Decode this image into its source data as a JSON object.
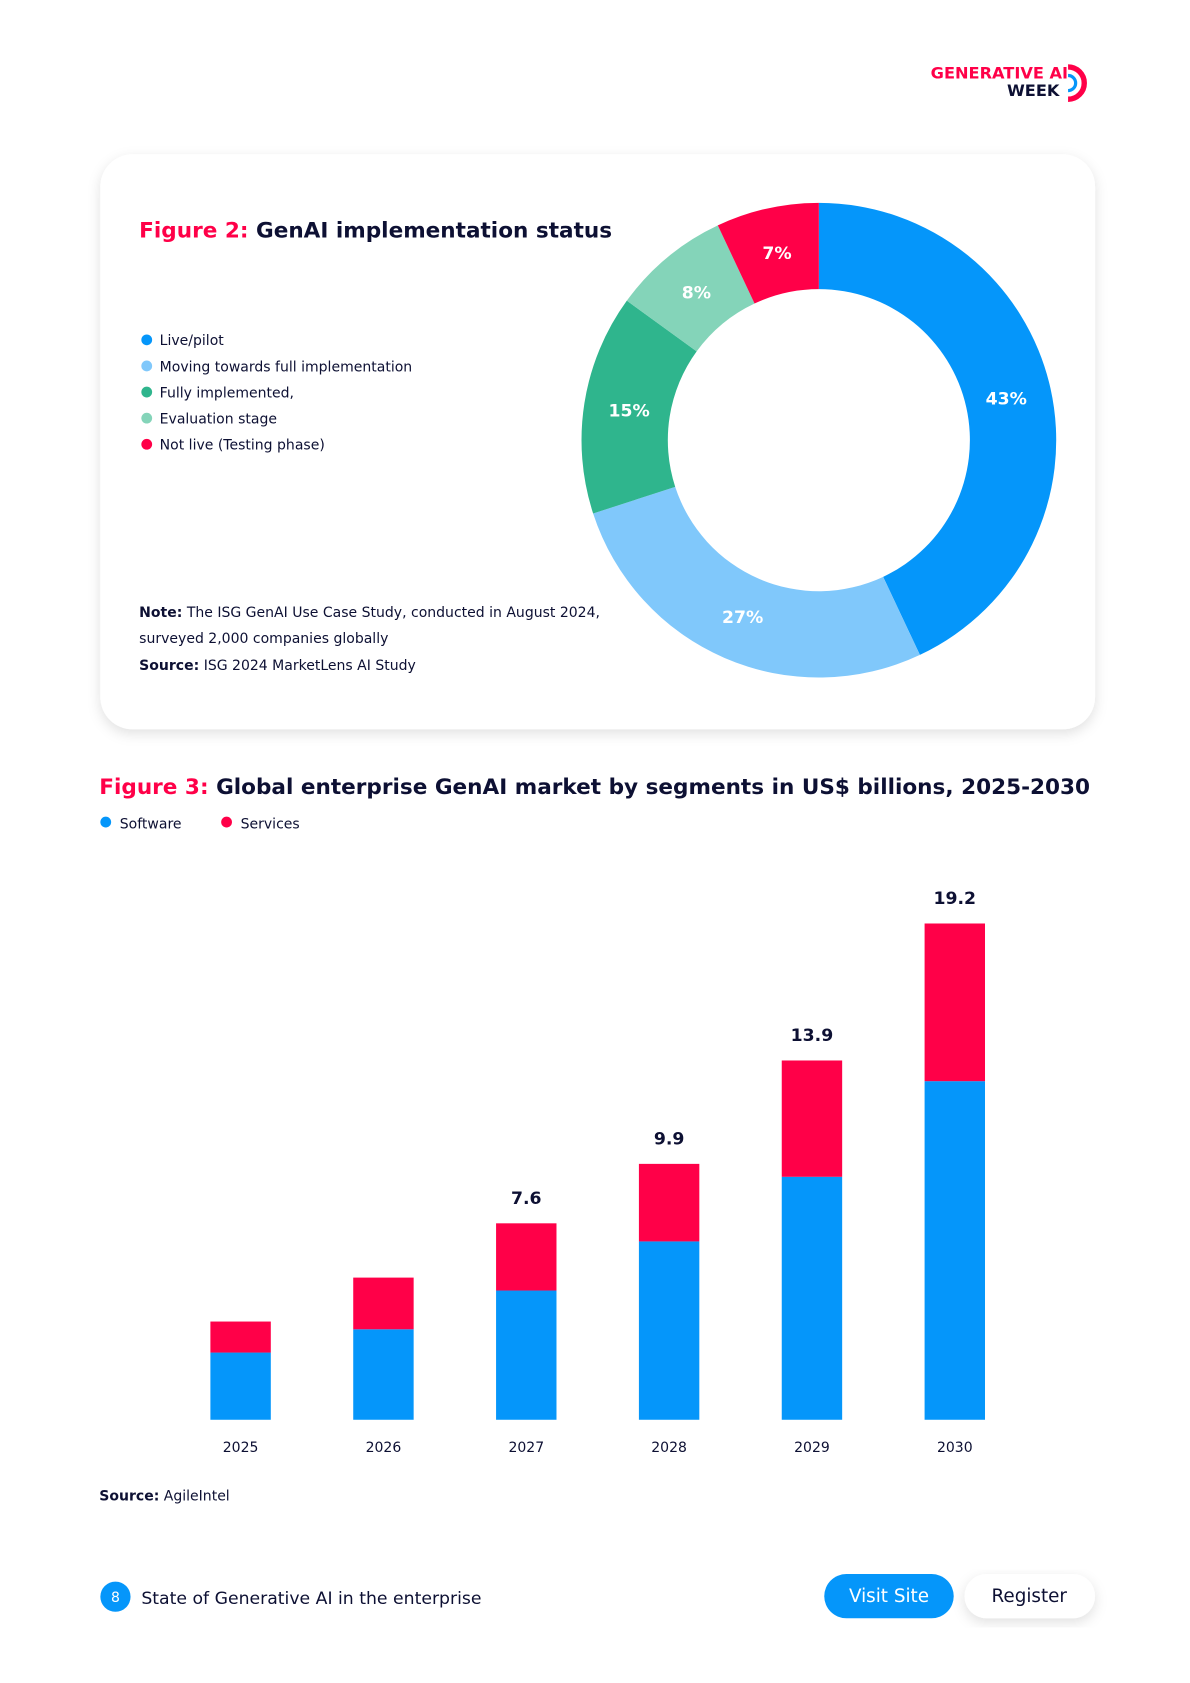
{
  "logo": {
    "line1": "GENERATIVE AI",
    "line2": "WEEK"
  },
  "chart_data": [
    {
      "type": "pie",
      "figure_label": "Figure 2:",
      "title": "GenAI implementation status",
      "categories": [
        "Live/pilot",
        "Moving towards full implementation",
        "Fully implemented,",
        "Evaluation stage",
        "Not live (Testing phase)"
      ],
      "values": [
        43,
        27,
        15,
        8,
        7
      ],
      "value_labels": [
        "43%",
        "27%",
        "15%",
        "8%",
        "7%"
      ],
      "colors": [
        "#0596fa",
        "#80c8fb",
        "#2fb58d",
        "#84d4b9",
        "#ff0048"
      ],
      "note": {
        "label": "Note:",
        "lines": [
          "The ISG GenAI Use Case Study, conducted in August 2024,",
          "surveyed 2,000 companies globally"
        ]
      },
      "source": {
        "label": "Source:",
        "text": "ISG 2024 MarketLens AI Study"
      }
    },
    {
      "type": "bar",
      "figure_label": "Figure 3:",
      "title": "Global enterprise GenAI market by segments in US$ billions, 2025-2030",
      "stacked": true,
      "categories": [
        "2025",
        "2026",
        "2027",
        "2028",
        "2029",
        "2030"
      ],
      "series": [
        {
          "name": "Software",
          "color": "#0596fa",
          "values": [
            2.6,
            3.5,
            5.0,
            6.9,
            9.4,
            13.1
          ]
        },
        {
          "name": "Services",
          "color": "#ff0048",
          "values": [
            1.2,
            2.0,
            2.6,
            3.0,
            4.5,
            6.1
          ]
        }
      ],
      "totals": [
        null,
        null,
        7.6,
        9.9,
        13.9,
        19.2
      ],
      "source": {
        "label": "Source:",
        "text": "AgileIntel"
      }
    }
  ],
  "footer": {
    "page": "8",
    "text": "State of Generative AI in the enterprise",
    "buttons": [
      "Visit Site",
      "Register"
    ]
  }
}
